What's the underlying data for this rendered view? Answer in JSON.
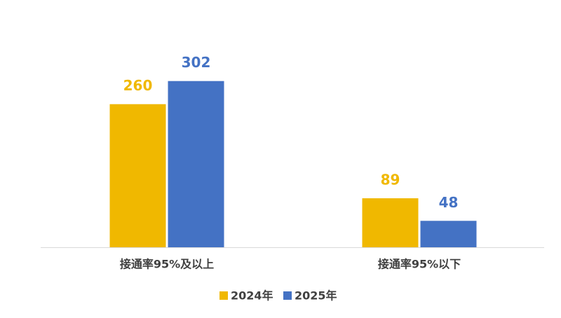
{
  "chart_data": {
    "type": "bar",
    "categories": [
      "接通率95%及以上",
      "接通率95%以下"
    ],
    "series": [
      {
        "name": "2024年",
        "color": "#f0b800",
        "values": [
          260,
          89
        ]
      },
      {
        "name": "2025年",
        "color": "#4472c4",
        "values": [
          302,
          48
        ]
      }
    ],
    "ylim": [
      0,
      350
    ],
    "legend": "bottom"
  }
}
